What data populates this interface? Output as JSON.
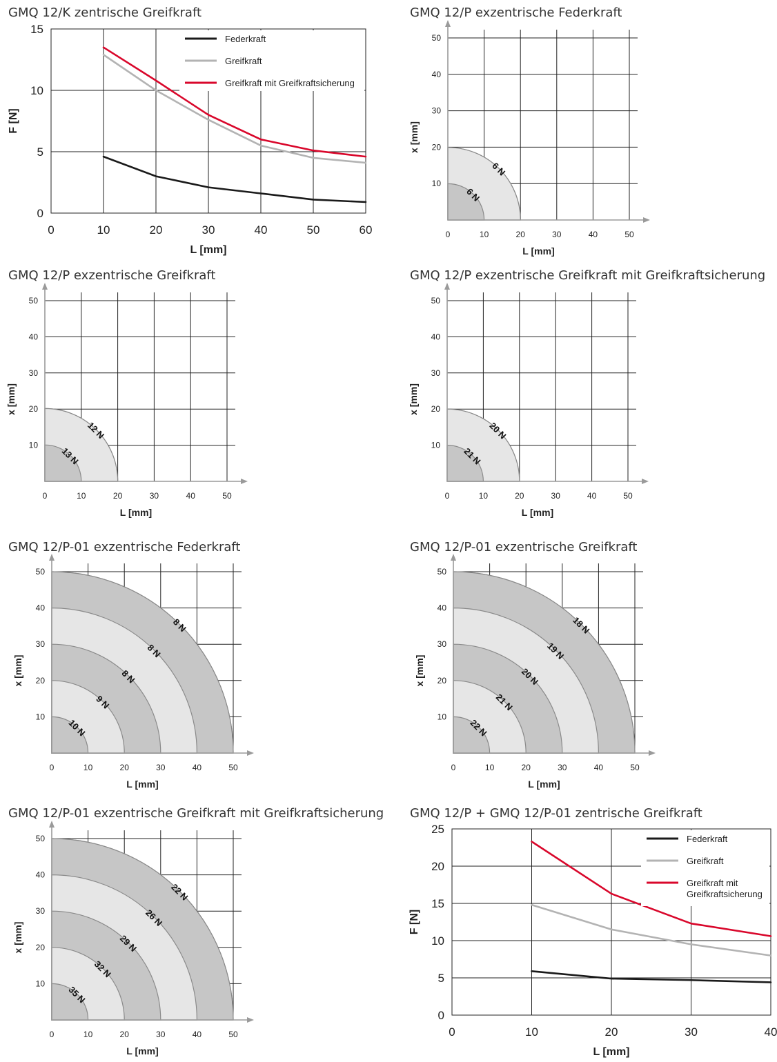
{
  "colors": {
    "federkraft": "#1a1a1a",
    "greifkraft": "#b3b3b3",
    "greifkraft_sicherung": "#d9072b",
    "zone_dark": "#c6c6c6",
    "zone_light": "#e6e6e6",
    "zone_border": "#8a8a8a",
    "grid": "#222222",
    "axis_arrow": "#9a9a9a"
  },
  "chart_data": [
    {
      "id": "p1",
      "type": "line",
      "title": "GMQ 12/K zentrische Greifkraft",
      "xlabel": "L [mm]",
      "ylabel": "F [N]",
      "xlim": [
        0,
        60
      ],
      "ylim": [
        0,
        15
      ],
      "xticks": [
        "0",
        "10",
        "20",
        "30",
        "40",
        "50",
        "60"
      ],
      "yticks": [
        "0",
        "5",
        "10",
        "15"
      ],
      "grid": true,
      "legend_position": "top-right",
      "series": [
        {
          "name": "Federkraft",
          "color_key": "federkraft",
          "x": [
            10,
            20,
            30,
            40,
            50,
            60
          ],
          "values": [
            4.6,
            3.0,
            2.1,
            1.6,
            1.1,
            0.9
          ]
        },
        {
          "name": "Greifkraft",
          "color_key": "greifkraft",
          "x": [
            10,
            20,
            30,
            40,
            50,
            60
          ],
          "values": [
            12.9,
            10.0,
            7.6,
            5.5,
            4.5,
            4.1
          ]
        },
        {
          "name": "Greifkraft mit Greifkraftsicherung",
          "color_key": "greifkraft_sicherung",
          "x": [
            10,
            20,
            30,
            40,
            50,
            60
          ],
          "values": [
            13.5,
            10.8,
            8.0,
            6.0,
            5.1,
            4.6
          ]
        }
      ]
    },
    {
      "id": "p2",
      "type": "zone",
      "title": "GMQ 12/P exzentrische Federkraft",
      "xlabel": "L [mm]",
      "ylabel": "x [mm]",
      "xlim": [
        0,
        50
      ],
      "ylim": [
        0,
        50
      ],
      "xticks": [
        "0",
        "10",
        "20",
        "30",
        "40",
        "50"
      ],
      "yticks": [
        "10",
        "20",
        "30",
        "40",
        "50"
      ],
      "zones": [
        {
          "radius": 10,
          "label": "6 N"
        },
        {
          "radius": 20,
          "label": "6 N"
        }
      ]
    },
    {
      "id": "p3",
      "type": "zone",
      "title": "GMQ 12/P exzentrische Greifkraft",
      "xlabel": "L [mm]",
      "ylabel": "x [mm]",
      "xlim": [
        0,
        50
      ],
      "ylim": [
        0,
        50
      ],
      "xticks": [
        "0",
        "10",
        "20",
        "30",
        "40",
        "50"
      ],
      "yticks": [
        "10",
        "20",
        "30",
        "40",
        "50"
      ],
      "zones": [
        {
          "radius": 10,
          "label": "13 N"
        },
        {
          "radius": 20,
          "label": "12 N"
        }
      ]
    },
    {
      "id": "p4",
      "type": "zone",
      "title": "GMQ 12/P exzentrische Greifkraft mit Greifkraftsicherung",
      "xlabel": "L [mm]",
      "ylabel": "x [mm]",
      "xlim": [
        0,
        50
      ],
      "ylim": [
        0,
        50
      ],
      "xticks": [
        "0",
        "10",
        "20",
        "30",
        "40",
        "50"
      ],
      "yticks": [
        "10",
        "20",
        "30",
        "40",
        "50"
      ],
      "zones": [
        {
          "radius": 10,
          "label": "21 N"
        },
        {
          "radius": 20,
          "label": "20 N"
        }
      ]
    },
    {
      "id": "p5",
      "type": "zone",
      "title": "GMQ 12/P-01 exzentrische Federkraft",
      "xlabel": "L [mm]",
      "ylabel": "x [mm]",
      "xlim": [
        0,
        50
      ],
      "ylim": [
        0,
        50
      ],
      "xticks": [
        "0",
        "10",
        "20",
        "30",
        "40",
        "50"
      ],
      "yticks": [
        "10",
        "20",
        "30",
        "40",
        "50"
      ],
      "zones": [
        {
          "radius": 10,
          "label": "10 N"
        },
        {
          "radius": 20,
          "label": "9 N"
        },
        {
          "radius": 30,
          "label": "8 N"
        },
        {
          "radius": 40,
          "label": "8 N"
        },
        {
          "radius": 50,
          "label": "8 N"
        }
      ]
    },
    {
      "id": "p6",
      "type": "zone",
      "title": "GMQ 12/P-01 exzentrische Greifkraft",
      "xlabel": "L [mm]",
      "ylabel": "x [mm]",
      "xlim": [
        0,
        50
      ],
      "ylim": [
        0,
        50
      ],
      "xticks": [
        "0",
        "10",
        "20",
        "30",
        "40",
        "50"
      ],
      "yticks": [
        "10",
        "20",
        "30",
        "40",
        "50"
      ],
      "zones": [
        {
          "radius": 10,
          "label": "22 N"
        },
        {
          "radius": 20,
          "label": "21 N"
        },
        {
          "radius": 30,
          "label": "20 N"
        },
        {
          "radius": 40,
          "label": "19 N"
        },
        {
          "radius": 50,
          "label": "18 N"
        }
      ]
    },
    {
      "id": "p7",
      "type": "zone",
      "title": "GMQ 12/P-01 exzentrische Greifkraft mit Greifkraftsicherung",
      "xlabel": "L [mm]",
      "ylabel": "x [mm]",
      "xlim": [
        0,
        50
      ],
      "ylim": [
        0,
        50
      ],
      "xticks": [
        "0",
        "10",
        "20",
        "30",
        "40",
        "50"
      ],
      "yticks": [
        "10",
        "20",
        "30",
        "40",
        "50"
      ],
      "zones": [
        {
          "radius": 10,
          "label": "35 N"
        },
        {
          "radius": 20,
          "label": "32 N"
        },
        {
          "radius": 30,
          "label": "29 N"
        },
        {
          "radius": 40,
          "label": "26 N"
        },
        {
          "radius": 50,
          "label": "22 N"
        }
      ]
    },
    {
      "id": "p8",
      "type": "line",
      "title": "GMQ 12/P + GMQ 12/P-01 zentrische Greifkraft",
      "xlabel": "L [mm]",
      "ylabel": "F [N]",
      "xlim": [
        0,
        40
      ],
      "ylim": [
        0,
        25
      ],
      "xticks": [
        "0",
        "10",
        "20",
        "30",
        "40"
      ],
      "yticks": [
        "0",
        "5",
        "10",
        "15",
        "20",
        "25"
      ],
      "grid": true,
      "legend_position": "top-right",
      "series": [
        {
          "name": "Federkraft",
          "color_key": "federkraft",
          "x": [
            10,
            20,
            30,
            40
          ],
          "values": [
            5.9,
            4.9,
            4.7,
            4.4
          ]
        },
        {
          "name": "Greifkraft",
          "color_key": "greifkraft",
          "x": [
            10,
            20,
            30,
            40
          ],
          "values": [
            14.8,
            11.5,
            9.5,
            8.0
          ]
        },
        {
          "name": "Greifkraft mit\nGreifkraftsicherung",
          "color_key": "greifkraft_sicherung",
          "x": [
            10,
            20,
            30,
            40
          ],
          "values": [
            23.3,
            16.3,
            12.3,
            10.6
          ]
        }
      ]
    }
  ]
}
